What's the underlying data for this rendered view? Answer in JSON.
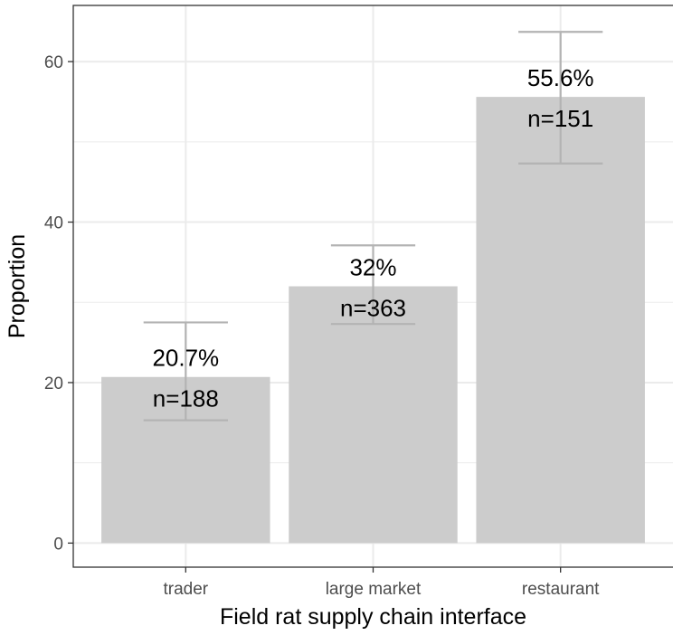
{
  "chart_data": {
    "type": "bar",
    "title": "",
    "xlabel": "Field rat supply chain interface",
    "ylabel": "Proportion",
    "categories": [
      "trader",
      "large market",
      "restaurant"
    ],
    "values": [
      20.7,
      32.0,
      55.6
    ],
    "error_low": [
      15.3,
      27.3,
      47.3
    ],
    "error_high": [
      27.5,
      37.1,
      63.7
    ],
    "labels": [
      "20.7%",
      "32%",
      "55.6%"
    ],
    "n_labels": [
      "n=188",
      "n=363",
      "n=151"
    ],
    "ylim": [
      -3,
      67
    ],
    "yticks": [
      0,
      20,
      40,
      60
    ],
    "ytick_labels": [
      "0",
      "20",
      "40",
      "60"
    ],
    "grid": true,
    "legend": "none",
    "colors": {
      "bar": "#cccccc",
      "errorbar": "#b3b3b3",
      "grid": "#ebebeb",
      "panel_border": "#333333",
      "background": "#ffffff"
    }
  }
}
